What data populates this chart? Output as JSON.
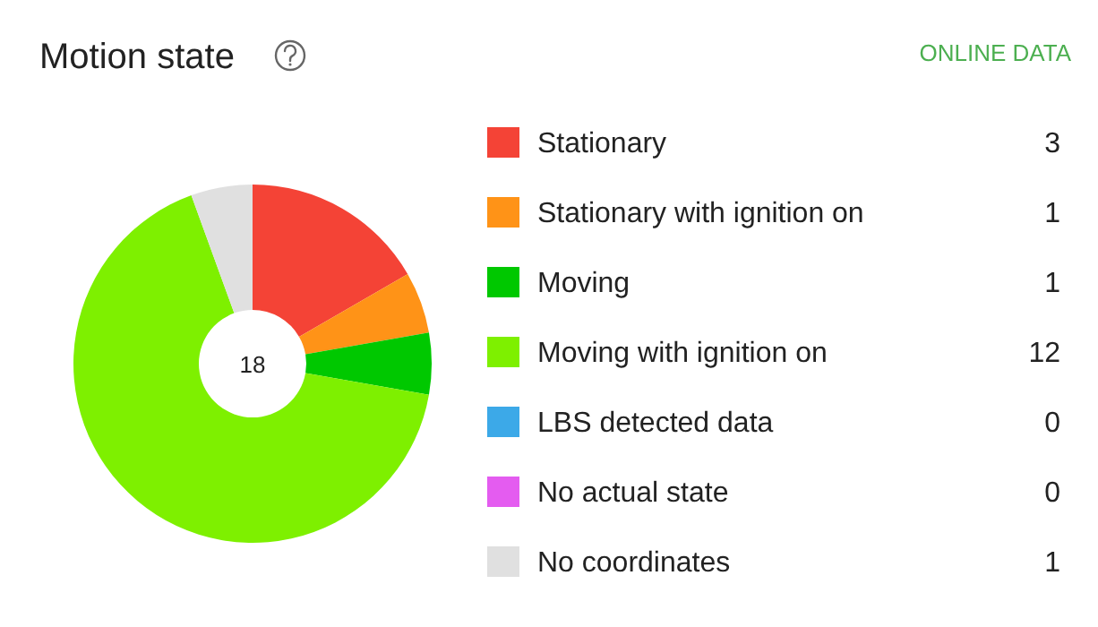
{
  "chart_data": {
    "type": "donut",
    "title": "Motion state",
    "subtitle": "ONLINE DATA",
    "categories": [
      "Stationary",
      "Stationary with ignition on",
      "Moving",
      "Moving with ignition on",
      "LBS detected data",
      "No actual state",
      "No coordinates"
    ],
    "values": [
      3,
      1,
      1,
      12,
      0,
      0,
      1
    ],
    "colors": [
      "#f44336",
      "#ff9317",
      "#00c800",
      "#7ef000",
      "#3ca9e8",
      "#e45cf0",
      "#e0e0e0"
    ],
    "annotations": [
      "18"
    ],
    "value_labels": [
      "3",
      "1",
      "1",
      "12",
      "0",
      "0",
      "1"
    ],
    "legend": "right"
  }
}
